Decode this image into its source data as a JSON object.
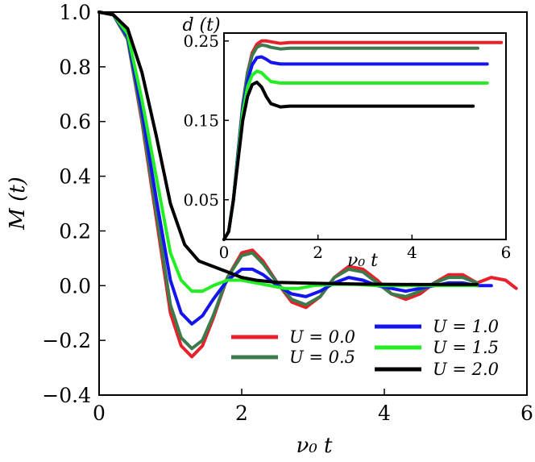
{
  "chart_data": [
    {
      "type": "line",
      "xlabel": "ν₀ t",
      "ylabel": "M (t)",
      "xlim": [
        0,
        6
      ],
      "ylim": [
        -0.4,
        1.0
      ],
      "xticks": [
        0,
        2,
        4,
        6
      ],
      "xtick_labels": [
        "0",
        "2",
        "4",
        "6"
      ],
      "yticks": [
        -0.4,
        -0.2,
        0.0,
        0.2,
        0.4,
        0.6,
        0.8,
        1.0
      ],
      "ytick_labels": [
        "−0.4",
        "−0.2",
        "0.0",
        "0.2",
        "0.4",
        "0.6",
        "0.8",
        "1.0"
      ],
      "grid": false,
      "legend_position": "lower-right",
      "series": [
        {
          "name": "U = 0.0",
          "color": "#e8202a",
          "x": [
            0,
            0.2,
            0.4,
            0.6,
            0.8,
            1.0,
            1.15,
            1.3,
            1.45,
            1.6,
            1.8,
            2.0,
            2.15,
            2.3,
            2.5,
            2.7,
            2.9,
            3.1,
            3.3,
            3.5,
            3.7,
            3.9,
            4.1,
            4.3,
            4.5,
            4.7,
            4.9,
            5.1,
            5.3,
            5.5,
            5.7,
            5.85
          ],
          "values": [
            1.0,
            0.99,
            0.9,
            0.6,
            0.25,
            -0.1,
            -0.22,
            -0.26,
            -0.22,
            -0.12,
            0.03,
            0.12,
            0.13,
            0.09,
            0.01,
            -0.06,
            -0.08,
            -0.04,
            0.03,
            0.07,
            0.06,
            0.02,
            -0.03,
            -0.05,
            -0.03,
            0.01,
            0.04,
            0.04,
            0.01,
            0.03,
            0.02,
            -0.01
          ]
        },
        {
          "name": "U = 0.5",
          "color": "#3d7a4c",
          "x": [
            0,
            0.2,
            0.4,
            0.6,
            0.8,
            1.0,
            1.15,
            1.3,
            1.45,
            1.6,
            1.8,
            2.0,
            2.15,
            2.3,
            2.5,
            2.7,
            2.9,
            3.1,
            3.3,
            3.5,
            3.7,
            3.9,
            4.1,
            4.3,
            4.5,
            4.7,
            4.9,
            5.1,
            5.3
          ],
          "values": [
            1.0,
            0.99,
            0.9,
            0.61,
            0.27,
            -0.07,
            -0.19,
            -0.23,
            -0.2,
            -0.11,
            0.03,
            0.11,
            0.12,
            0.08,
            0.01,
            -0.05,
            -0.07,
            -0.04,
            0.03,
            0.06,
            0.05,
            0.01,
            -0.03,
            -0.04,
            -0.02,
            0.01,
            0.03,
            0.03,
            0.01
          ]
        },
        {
          "name": "U = 1.0",
          "color": "#1414ee",
          "x": [
            0,
            0.2,
            0.4,
            0.6,
            0.8,
            1.0,
            1.15,
            1.3,
            1.45,
            1.6,
            1.8,
            2.0,
            2.15,
            2.3,
            2.5,
            2.7,
            2.9,
            3.1,
            3.3,
            3.5,
            3.7,
            3.9,
            4.1,
            4.3,
            4.5,
            4.7,
            4.9,
            5.1,
            5.3,
            5.5
          ],
          "values": [
            1.0,
            0.99,
            0.91,
            0.64,
            0.32,
            0.02,
            -0.1,
            -0.14,
            -0.11,
            -0.05,
            0.02,
            0.06,
            0.06,
            0.04,
            0.0,
            -0.03,
            -0.04,
            -0.02,
            0.01,
            0.03,
            0.02,
            0.0,
            -0.01,
            -0.02,
            -0.01,
            0.0,
            0.01,
            0.01,
            0.0,
            0.0
          ]
        },
        {
          "name": "U = 1.5",
          "color": "#22ee22",
          "x": [
            0,
            0.2,
            0.4,
            0.6,
            0.8,
            1.0,
            1.15,
            1.3,
            1.45,
            1.6,
            1.8,
            2.0,
            2.2,
            2.4,
            2.6,
            2.8,
            3.0,
            3.3,
            3.6,
            3.9,
            4.2,
            4.5,
            4.8,
            5.1,
            5.3
          ],
          "values": [
            1.0,
            0.99,
            0.92,
            0.68,
            0.4,
            0.12,
            0.02,
            -0.02,
            -0.02,
            0.0,
            0.02,
            0.02,
            0.01,
            0.0,
            -0.01,
            -0.01,
            0.0,
            0.005,
            0.005,
            0.0,
            0.0,
            0.0,
            0.0,
            0.0,
            0.0
          ]
        },
        {
          "name": "U = 2.0",
          "color": "#000000",
          "x": [
            0,
            0.2,
            0.4,
            0.6,
            0.8,
            1.0,
            1.2,
            1.4,
            1.6,
            1.8,
            2.0,
            2.2,
            2.5,
            2.8,
            3.2,
            3.6,
            4.0,
            4.5,
            5.0,
            5.3
          ],
          "values": [
            1.0,
            0.99,
            0.94,
            0.78,
            0.55,
            0.3,
            0.15,
            0.09,
            0.07,
            0.05,
            0.03,
            0.02,
            0.012,
            0.01,
            0.008,
            0.006,
            0.005,
            0.004,
            0.004,
            0.004
          ]
        }
      ]
    },
    {
      "type": "line",
      "xlabel": "ν₀ t",
      "ylabel": "d (t)",
      "xlim": [
        0,
        6
      ],
      "ylim": [
        0,
        0.26
      ],
      "xticks": [
        0,
        2,
        4,
        6
      ],
      "xtick_labels": [
        "0",
        "2",
        "4",
        "6"
      ],
      "yticks": [
        0.05,
        0.15,
        0.25
      ],
      "ytick_labels": [
        "0.05",
        "0.15",
        "0.25"
      ],
      "grid": false,
      "series": [
        {
          "name": "U = 0.0",
          "color": "#e8202a",
          "x": [
            0,
            0.1,
            0.2,
            0.3,
            0.4,
            0.5,
            0.6,
            0.7,
            0.8,
            0.9,
            1.0,
            1.2,
            1.4,
            1.7,
            2.0,
            3.0,
            4.0,
            5.0,
            5.9
          ],
          "values": [
            0,
            0.01,
            0.05,
            0.11,
            0.17,
            0.21,
            0.235,
            0.246,
            0.25,
            0.25,
            0.249,
            0.247,
            0.248,
            0.248,
            0.248,
            0.248,
            0.248,
            0.248,
            0.248
          ]
        },
        {
          "name": "U = 0.5",
          "color": "#3d7a4c",
          "x": [
            0,
            0.1,
            0.2,
            0.3,
            0.4,
            0.5,
            0.6,
            0.7,
            0.8,
            0.9,
            1.0,
            1.2,
            1.4,
            1.7,
            2.0,
            3.0,
            4.0,
            5.0,
            5.4
          ],
          "values": [
            0,
            0.01,
            0.05,
            0.11,
            0.17,
            0.21,
            0.232,
            0.242,
            0.245,
            0.244,
            0.242,
            0.24,
            0.241,
            0.241,
            0.241,
            0.241,
            0.241,
            0.241,
            0.241
          ]
        },
        {
          "name": "U = 1.0",
          "color": "#1414ee",
          "x": [
            0,
            0.1,
            0.2,
            0.3,
            0.4,
            0.5,
            0.6,
            0.7,
            0.8,
            0.9,
            1.0,
            1.2,
            1.4,
            1.7,
            2.0,
            3.0,
            4.0,
            5.0,
            5.6
          ],
          "values": [
            0,
            0.01,
            0.05,
            0.11,
            0.165,
            0.2,
            0.22,
            0.229,
            0.23,
            0.227,
            0.223,
            0.221,
            0.221,
            0.221,
            0.221,
            0.221,
            0.221,
            0.221,
            0.221
          ]
        },
        {
          "name": "U = 1.5",
          "color": "#22ee22",
          "x": [
            0,
            0.1,
            0.2,
            0.3,
            0.4,
            0.5,
            0.6,
            0.7,
            0.8,
            0.9,
            1.0,
            1.2,
            1.4,
            1.7,
            2.0,
            3.0,
            4.0,
            5.0,
            5.6
          ],
          "values": [
            0,
            0.01,
            0.05,
            0.105,
            0.16,
            0.192,
            0.207,
            0.212,
            0.21,
            0.204,
            0.199,
            0.197,
            0.197,
            0.197,
            0.197,
            0.197,
            0.197,
            0.197,
            0.197
          ]
        },
        {
          "name": "U = 2.0",
          "color": "#000000",
          "x": [
            0,
            0.1,
            0.2,
            0.3,
            0.4,
            0.5,
            0.6,
            0.7,
            0.8,
            0.9,
            1.0,
            1.2,
            1.4,
            1.7,
            2.0,
            3.0,
            4.0,
            5.0,
            5.3
          ],
          "values": [
            0,
            0.01,
            0.05,
            0.1,
            0.15,
            0.18,
            0.195,
            0.198,
            0.192,
            0.18,
            0.171,
            0.167,
            0.168,
            0.168,
            0.168,
            0.168,
            0.168,
            0.168,
            0.168
          ]
        }
      ]
    }
  ]
}
